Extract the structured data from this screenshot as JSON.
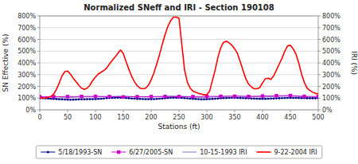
{
  "chart_data": {
    "type": "line",
    "title": "Normalized SNeff and IRI - Section 190108",
    "x_label": "Stations (ft)",
    "y_label": "SN Effective (%)",
    "y2_label": "IRI (%)",
    "xlim": [
      0,
      500
    ],
    "ylim": [
      0,
      800
    ],
    "y2lim": [
      0,
      800
    ],
    "xticks": [
      0,
      50,
      100,
      150,
      200,
      250,
      300,
      350,
      400,
      450,
      500
    ],
    "yticks": [
      {
        "value": 0,
        "label": "0%"
      },
      {
        "value": 100,
        "label": "100%"
      },
      {
        "value": 200,
        "label": "200%"
      },
      {
        "value": 300,
        "label": "300%"
      },
      {
        "value": 400,
        "label": "400%"
      },
      {
        "value": 500,
        "label": "500%"
      },
      {
        "value": 600,
        "label": "600%"
      },
      {
        "value": 700,
        "label": "700%"
      },
      {
        "value": 800,
        "label": "800%"
      }
    ],
    "y2ticks": [
      {
        "value": 0,
        "label": "0%"
      },
      {
        "value": 100,
        "label": "100%"
      },
      {
        "value": 200,
        "label": "200%"
      },
      {
        "value": 300,
        "label": "300%"
      },
      {
        "value": 400,
        "label": "400%"
      },
      {
        "value": 500,
        "label": "500%"
      },
      {
        "value": 600,
        "label": "600%"
      },
      {
        "value": 700,
        "label": "700%"
      },
      {
        "value": 800,
        "label": "800%"
      }
    ],
    "grid": "y",
    "legend": "bottom",
    "series": [
      {
        "name": "5/18/1993-SN",
        "color": "#00008B",
        "marker": "circle",
        "line_style": "solid",
        "x": [
          0,
          5,
          10,
          15,
          20,
          25,
          30,
          35,
          40,
          45,
          50,
          55,
          60,
          65,
          70,
          75,
          80,
          85,
          90,
          95,
          100,
          105,
          110,
          115,
          120,
          125,
          130,
          135,
          140,
          145,
          150,
          155,
          160,
          165,
          170,
          175,
          180,
          185,
          190,
          195,
          200,
          205,
          210,
          215,
          220,
          225,
          230,
          235,
          240,
          245,
          250,
          255,
          260,
          265,
          270,
          275,
          280,
          285,
          290,
          295,
          300,
          305,
          310,
          315,
          320,
          325,
          330,
          335,
          340,
          345,
          350,
          355,
          360,
          365,
          370,
          375,
          380,
          385,
          390,
          395,
          400,
          405,
          410,
          415,
          420,
          425,
          430,
          435,
          440,
          445,
          450,
          455,
          460,
          465,
          470,
          475,
          480,
          485,
          490,
          495,
          500
        ],
        "values": [
          100,
          100,
          98,
          97,
          95,
          93,
          92,
          90,
          89,
          88,
          87,
          86,
          87,
          88,
          89,
          90,
          90,
          91,
          91,
          91,
          92,
          93,
          95,
          97,
          100,
          101,
          102,
          103,
          104,
          104,
          103,
          101,
          99,
          97,
          96,
          94,
          93,
          92,
          91,
          91,
          91,
          92,
          93,
          95,
          97,
          99,
          101,
          103,
          104,
          104,
          103,
          102,
          100,
          98,
          96,
          94,
          93,
          91,
          90,
          90,
          91,
          92,
          93,
          95,
          97,
          99,
          100,
          101,
          102,
          103,
          103,
          102,
          101,
          100,
          99,
          98,
          97,
          96,
          95,
          94,
          94,
          94,
          95,
          96,
          97,
          98,
          99,
          100,
          101,
          102,
          102,
          102,
          102,
          101,
          100,
          100,
          99,
          99,
          99,
          99,
          100
        ]
      },
      {
        "name": "6/27/2005-SN",
        "color": "#CC00CC",
        "marker": "square",
        "line_style": "solid",
        "x": [
          0,
          25,
          50,
          75,
          100,
          125,
          150,
          175,
          200,
          225,
          250,
          275,
          300,
          325,
          350,
          375,
          400,
          425,
          450,
          475,
          500
        ],
        "values": [
          112,
          112,
          113,
          114,
          115,
          113,
          110,
          112,
          113,
          114,
          113,
          113,
          114,
          115,
          116,
          114,
          118,
          120,
          122,
          115,
          113
        ]
      },
      {
        "name": "10-15-1993 IRI",
        "color": "#7B7BCC",
        "marker": "none",
        "line_style": "solid",
        "axis": "y2",
        "x": [
          0,
          5,
          10,
          15,
          20,
          25,
          30,
          35,
          40,
          45,
          50,
          55,
          60,
          65,
          70,
          75,
          80,
          85,
          90,
          95,
          100,
          105,
          110,
          115,
          120,
          125,
          130,
          135,
          140,
          145,
          150,
          155,
          160,
          165,
          170,
          175,
          180,
          185,
          190,
          195,
          200,
          205,
          210,
          215,
          220,
          225,
          230,
          235,
          240,
          245,
          250,
          255,
          260,
          265,
          270,
          275,
          280,
          285,
          290,
          295,
          300,
          305,
          310,
          315,
          320,
          325,
          330,
          335,
          340,
          345,
          350,
          355,
          360,
          365,
          370,
          375,
          380,
          385,
          390,
          395,
          400,
          405,
          410,
          415,
          420,
          425,
          430,
          435,
          440,
          445,
          450,
          455,
          460,
          465,
          470,
          475,
          480,
          485,
          490,
          495,
          500
        ],
        "values": [
          95,
          95,
          96,
          97,
          98,
          99,
          100,
          102,
          103,
          104,
          105,
          106,
          107,
          108,
          109,
          109,
          110,
          110,
          110,
          111,
          111,
          111,
          112,
          112,
          113,
          113,
          114,
          115,
          116,
          117,
          117,
          116,
          115,
          114,
          112,
          111,
          110,
          109,
          109,
          109,
          110,
          111,
          112,
          113,
          114,
          115,
          116,
          117,
          117,
          117,
          116,
          115,
          113,
          112,
          110,
          109,
          108,
          107,
          106,
          106,
          107,
          108,
          109,
          110,
          112,
          113,
          115,
          116,
          117,
          118,
          118,
          118,
          117,
          116,
          115,
          114,
          113,
          112,
          111,
          110,
          110,
          110,
          111,
          112,
          113,
          114,
          115,
          116,
          117,
          117,
          117,
          116,
          115,
          113,
          112,
          111,
          110,
          109,
          108,
          107,
          107
        ]
      },
      {
        "name": "9-22-2004 IRI",
        "color": "#FF0000",
        "marker": "none",
        "line_style": "solid",
        "axis": "y2",
        "x": [
          0,
          5,
          10,
          15,
          20,
          25,
          30,
          35,
          40,
          45,
          50,
          55,
          60,
          65,
          70,
          75,
          80,
          85,
          90,
          95,
          100,
          105,
          110,
          115,
          120,
          125,
          130,
          135,
          140,
          145,
          150,
          155,
          160,
          165,
          170,
          175,
          180,
          185,
          190,
          195,
          200,
          205,
          210,
          215,
          220,
          225,
          230,
          235,
          240,
          245,
          250,
          255,
          260,
          265,
          270,
          275,
          280,
          285,
          290,
          295,
          300,
          305,
          310,
          315,
          320,
          325,
          330,
          335,
          340,
          345,
          350,
          355,
          360,
          365,
          370,
          375,
          380,
          385,
          390,
          395,
          400,
          405,
          410,
          415,
          420,
          425,
          430,
          435,
          440,
          445,
          450,
          455,
          460,
          465,
          470,
          475,
          480,
          485,
          490,
          495,
          500
        ],
        "values": [
          100,
          100,
          100,
          105,
          115,
          135,
          175,
          230,
          290,
          325,
          330,
          305,
          270,
          240,
          210,
          185,
          175,
          185,
          210,
          250,
          280,
          305,
          320,
          335,
          355,
          390,
          420,
          450,
          480,
          510,
          480,
          410,
          345,
          285,
          240,
          205,
          185,
          180,
          185,
          210,
          255,
          315,
          390,
          470,
          560,
          640,
          710,
          760,
          790,
          790,
          780,
          560,
          340,
          235,
          185,
          160,
          150,
          140,
          135,
          128,
          130,
          160,
          250,
          340,
          450,
          530,
          575,
          585,
          570,
          550,
          520,
          480,
          410,
          335,
          265,
          220,
          195,
          180,
          180,
          190,
          230,
          265,
          270,
          260,
          290,
          340,
          390,
          440,
          500,
          545,
          550,
          520,
          475,
          400,
          305,
          235,
          185,
          165,
          150,
          140,
          135
        ]
      }
    ]
  }
}
